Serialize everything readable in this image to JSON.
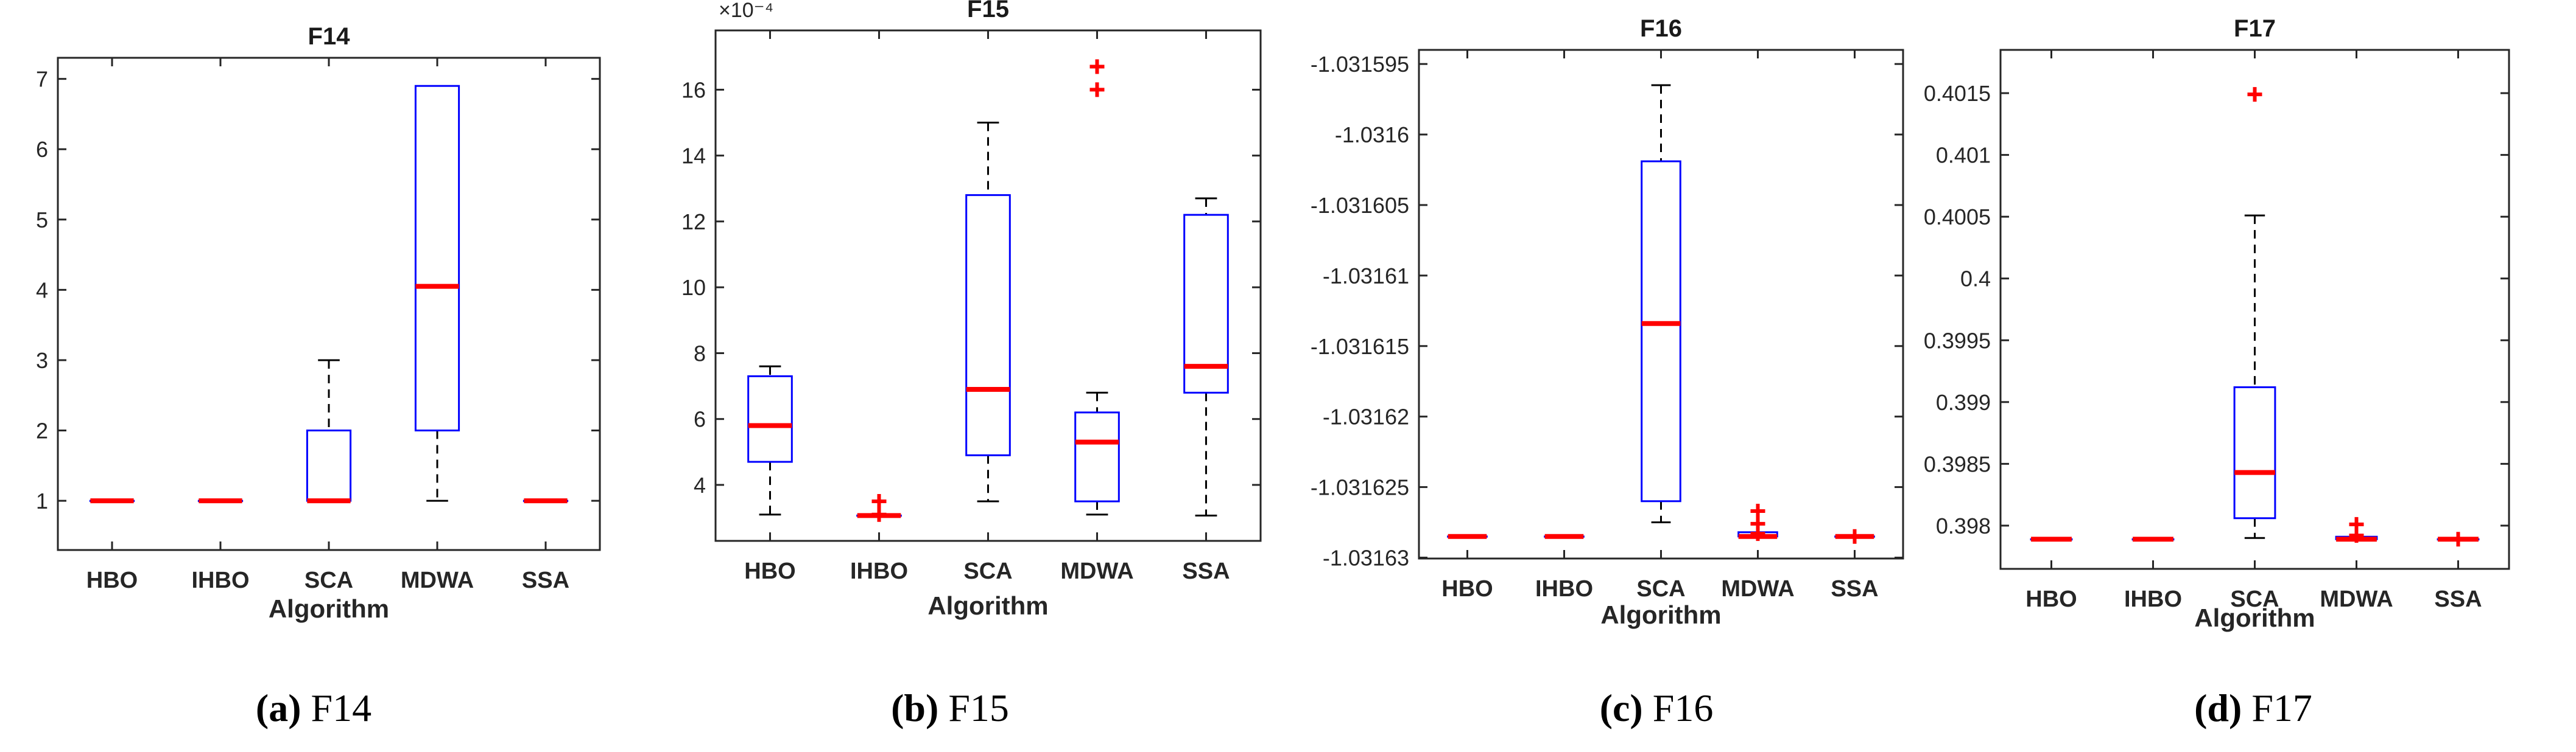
{
  "colors": {
    "box": "#0000ff",
    "median": "#ff0000",
    "whisker": "#000000",
    "outlier": "#ff0000",
    "axes": "#262626"
  },
  "chart_data": [
    {
      "type": "box",
      "title": "F14",
      "xlabel": "Algorithm",
      "categories": [
        "HBO",
        "IHBO",
        "SCA",
        "MDWA",
        "SSA"
      ],
      "ylim": [
        0.3,
        7.3
      ],
      "yticks": [
        1,
        2,
        3,
        4,
        5,
        6,
        7
      ],
      "ytick_labels": [
        "1",
        "2",
        "3",
        "4",
        "5",
        "6",
        "7"
      ],
      "exponent_label": "",
      "boxes": [
        {
          "q1": 1,
          "median": 1,
          "q3": 1,
          "whislo": 1,
          "whishi": 1,
          "outliers": []
        },
        {
          "q1": 1,
          "median": 1,
          "q3": 1,
          "whislo": 1,
          "whishi": 1,
          "outliers": []
        },
        {
          "q1": 1,
          "median": 1,
          "q3": 2,
          "whislo": 1,
          "whishi": 3,
          "outliers": []
        },
        {
          "q1": 2,
          "median": 4.05,
          "q3": 6.9,
          "whislo": 1,
          "whishi": 6.9,
          "outliers": []
        },
        {
          "q1": 1,
          "median": 1,
          "q3": 1,
          "whislo": 1,
          "whishi": 1,
          "outliers": []
        }
      ],
      "caption_letter": "(a)",
      "caption_text": " F14"
    },
    {
      "type": "box",
      "title": "F15",
      "xlabel": "Algorithm",
      "categories": [
        "HBO",
        "IHBO",
        "SCA",
        "MDWA",
        "SSA"
      ],
      "ylim": [
        2.3,
        17.8
      ],
      "yticks": [
        4,
        6,
        8,
        10,
        12,
        14,
        16
      ],
      "ytick_labels": [
        "4",
        "6",
        "8",
        "10",
        "12",
        "14",
        "16"
      ],
      "exponent_label": "×10⁻⁴",
      "boxes": [
        {
          "q1": 4.7,
          "median": 5.8,
          "q3": 7.3,
          "whislo": 3.1,
          "whishi": 7.6,
          "outliers": []
        },
        {
          "q1": 3.07,
          "median": 3.07,
          "q3": 3.07,
          "whislo": 3.07,
          "whishi": 3.07,
          "outliers": [
            3.5,
            3.1
          ]
        },
        {
          "q1": 4.9,
          "median": 6.9,
          "q3": 12.8,
          "whislo": 3.5,
          "whishi": 15.0,
          "outliers": []
        },
        {
          "q1": 3.5,
          "median": 5.3,
          "q3": 6.2,
          "whislo": 3.1,
          "whishi": 6.8,
          "outliers": [
            16.7,
            16.0
          ]
        },
        {
          "q1": 6.8,
          "median": 7.6,
          "q3": 12.2,
          "whislo": 3.07,
          "whishi": 12.7,
          "outliers": []
        }
      ],
      "caption_letter": "(b)",
      "caption_text": " F15"
    },
    {
      "type": "box",
      "title": "F16",
      "xlabel": "Algorithm",
      "categories": [
        "HBO",
        "IHBO",
        "SCA",
        "MDWA",
        "SSA"
      ],
      "ylim": [
        -1.031630065,
        -1.031594
      ],
      "yticks": [
        -1.031595,
        -1.0316,
        -1.031605,
        -1.03161,
        -1.031615,
        -1.03162,
        -1.031625,
        -1.03163
      ],
      "ytick_labels": [
        "-1.031595",
        "-1.0316",
        "-1.031605",
        "-1.03161",
        "-1.031615",
        "-1.03162",
        "-1.031625",
        "-1.03163"
      ],
      "exponent_label": "",
      "boxes": [
        {
          "q1": -1.0316285,
          "median": -1.0316285,
          "q3": -1.0316285,
          "whislo": -1.0316285,
          "whishi": -1.0316285,
          "outliers": []
        },
        {
          "q1": -1.0316285,
          "median": -1.0316285,
          "q3": -1.0316285,
          "whislo": -1.0316285,
          "whishi": -1.0316285,
          "outliers": []
        },
        {
          "q1": -1.031626,
          "median": -1.0316134,
          "q3": -1.0316019,
          "whislo": -1.0316275,
          "whishi": -1.0315965,
          "outliers": []
        },
        {
          "q1": -1.0316285,
          "median": -1.0316285,
          "q3": -1.0316282,
          "whislo": -1.0316285,
          "whishi": -1.0316282,
          "outliers": [
            -1.0316267,
            -1.0316276,
            -1.0316283
          ]
        },
        {
          "q1": -1.0316285,
          "median": -1.0316285,
          "q3": -1.0316285,
          "whislo": -1.0316285,
          "whishi": -1.0316285,
          "outliers": [
            -1.0316285
          ]
        }
      ],
      "caption_letter": "(c)",
      "caption_text": " F16"
    },
    {
      "type": "box",
      "title": "F17",
      "xlabel": "Algorithm",
      "categories": [
        "HBO",
        "IHBO",
        "SCA",
        "MDWA",
        "SSA"
      ],
      "ylim": [
        0.39765,
        0.40185
      ],
      "yticks": [
        0.398,
        0.3985,
        0.399,
        0.3995,
        0.4,
        0.4005,
        0.401,
        0.4015
      ],
      "ytick_labels": [
        "0.398",
        "0.3985",
        "0.399",
        "0.3995",
        "0.4",
        "0.4005",
        "0.401",
        "0.4015"
      ],
      "exponent_label": "",
      "boxes": [
        {
          "q1": 0.39789,
          "median": 0.39789,
          "q3": 0.39789,
          "whislo": 0.39789,
          "whishi": 0.39789,
          "outliers": []
        },
        {
          "q1": 0.39789,
          "median": 0.39789,
          "q3": 0.39789,
          "whislo": 0.39789,
          "whishi": 0.39789,
          "outliers": []
        },
        {
          "q1": 0.39806,
          "median": 0.39843,
          "q3": 0.39912,
          "whislo": 0.3979,
          "whishi": 0.40051,
          "outliers": [
            0.40149
          ]
        },
        {
          "q1": 0.39789,
          "median": 0.39789,
          "q3": 0.39791,
          "whislo": 0.39789,
          "whishi": 0.39791,
          "outliers": [
            0.39801,
            0.39792
          ]
        },
        {
          "q1": 0.39789,
          "median": 0.39789,
          "q3": 0.39789,
          "whislo": 0.39789,
          "whishi": 0.39789,
          "outliers": [
            0.39789
          ]
        }
      ],
      "caption_letter": "(d)",
      "caption_text": " F17"
    }
  ]
}
